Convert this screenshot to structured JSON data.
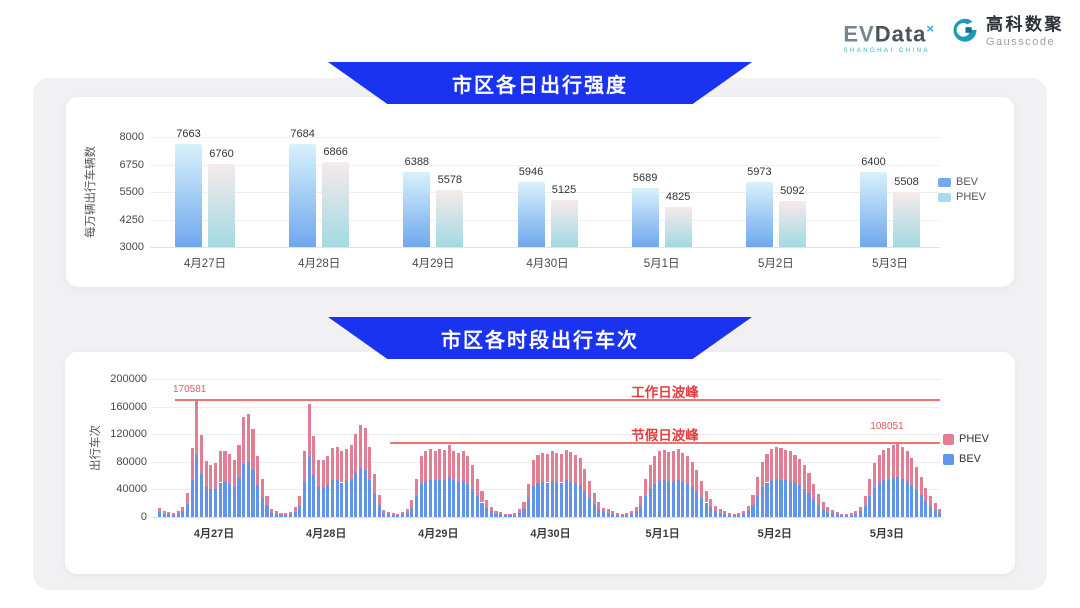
{
  "header": {
    "evdata": {
      "ev": "EV",
      "data": "Data",
      "sup": "×",
      "subtext": "SHANGHAI CHINA"
    },
    "gausscode": {
      "cn": "高科数聚",
      "en": "Gausscode"
    }
  },
  "colors": {
    "banner_blue": "#1a33f0",
    "annotation_red": "#e23d3d",
    "annotation_value_red": "#e25c5c",
    "annotation_line_red": "#ea7575",
    "bev_bar_top": "#d8f2fb",
    "bev_bar_bottom": "#6fa7ee",
    "phev_bar_top": "#f7eaea",
    "phev_bar_bottom": "#a2dae2",
    "legend_bev1": "#71aaef",
    "legend_phev1": "#a6dce6",
    "bev_stack": "#6394ec",
    "phev_stack": "#e27e93"
  },
  "chart_data": [
    {
      "type": "bar",
      "title": "市区各日出行强度",
      "ylabel": "每万辆出行车辆数",
      "categories": [
        "4月27日",
        "4月28日",
        "4月29日",
        "4月30日",
        "5月1日",
        "5月2日",
        "5月3日"
      ],
      "series": [
        {
          "name": "BEV",
          "values": [
            7663,
            7684,
            6388,
            5946,
            5689,
            5973,
            6400
          ]
        },
        {
          "name": "PHEV",
          "values": [
            6760,
            6866,
            5578,
            5125,
            4825,
            5092,
            5508
          ]
        }
      ],
      "ylim": [
        3000,
        8000
      ],
      "yticks": [
        3000,
        4250,
        5500,
        6750,
        8000
      ],
      "grid": true,
      "legend_position": "right"
    },
    {
      "type": "bar",
      "stacked": true,
      "title": "市区各时段出行车次",
      "ylabel": "出行车次",
      "x_unit": "hour-of-day (24 bars per date)",
      "categories": [
        "4月27日",
        "4月28日",
        "4月29日",
        "4月30日",
        "5月1日",
        "5月2日",
        "5月3日"
      ],
      "legend": [
        "PHEV",
        "BEV"
      ],
      "ylim": [
        0,
        200000
      ],
      "yticks": [
        0,
        40000,
        80000,
        120000,
        160000,
        200000
      ],
      "grid": true,
      "legend_position": "right",
      "annotations": {
        "workday_label": "工作日波峰",
        "workday_peak_value": 170581,
        "workday_value_label": "170581",
        "holiday_label": "节假日波峰",
        "holiday_peak_value": 108051,
        "holiday_value_label": "108051"
      },
      "days": [
        {
          "label": "4月27日",
          "bev": [
            7000,
            5000,
            4000,
            3200,
            4300,
            8000,
            19000,
            54000,
            91000,
            62000,
            43000,
            40000,
            41000,
            50000,
            51000,
            48000,
            43000,
            56000,
            77000,
            80000,
            68000,
            47000,
            29000,
            16000
          ],
          "phev": [
            6000,
            4000,
            3000,
            2800,
            3700,
            7000,
            16000,
            46000,
            79581,
            57000,
            38000,
            36000,
            37000,
            45000,
            45000,
            43000,
            39000,
            49000,
            68000,
            70000,
            60000,
            41000,
            26000,
            14000
          ]
        },
        {
          "label": "4月28日",
          "bev": [
            6500,
            4300,
            3200,
            3200,
            3800,
            7500,
            16000,
            51000,
            88000,
            61000,
            43000,
            44000,
            47000,
            53000,
            54000,
            50000,
            52000,
            55000,
            64000,
            71000,
            68000,
            53000,
            33000,
            17000
          ],
          "phev": [
            5500,
            3700,
            2800,
            2800,
            3200,
            6500,
            14000,
            44000,
            76000,
            56000,
            39000,
            39000,
            41000,
            47000,
            48000,
            45000,
            46000,
            49000,
            56000,
            63000,
            61000,
            48000,
            29000,
            15000
          ]
        },
        {
          "label": "4月29日",
          "bev": [
            5500,
            3800,
            3300,
            2700,
            3800,
            6500,
            13500,
            30000,
            48000,
            52000,
            54000,
            53000,
            54000,
            53000,
            58000,
            53000,
            51000,
            52000,
            48000,
            41000,
            30000,
            21000,
            13500,
            8000
          ],
          "phev": [
            4500,
            3200,
            2700,
            2300,
            3200,
            5500,
            11500,
            25000,
            40000,
            43000,
            44000,
            43000,
            45000,
            44000,
            47000,
            43000,
            42000,
            43000,
            40000,
            34000,
            25000,
            17000,
            11500,
            7000
          ]
        },
        {
          "label": "4月30日",
          "bev": [
            5000,
            3800,
            2700,
            2700,
            3300,
            6000,
            12000,
            26000,
            45000,
            49000,
            51000,
            50000,
            52000,
            51000,
            50000,
            53000,
            51000,
            49000,
            46000,
            38000,
            28000,
            19000,
            12000,
            7000
          ],
          "phev": [
            4000,
            3200,
            2300,
            2300,
            2700,
            5000,
            10000,
            22000,
            37000,
            41000,
            42000,
            42000,
            43000,
            42000,
            42000,
            44000,
            43000,
            41000,
            39000,
            32000,
            24000,
            16000,
            10000,
            6000
          ]
        },
        {
          "label": "5月1日",
          "bev": [
            6500,
            4300,
            3300,
            2700,
            3300,
            5000,
            8000,
            16000,
            30000,
            41000,
            48000,
            52000,
            53000,
            51000,
            52000,
            53000,
            51000,
            48000,
            44000,
            37000,
            28000,
            21000,
            14000,
            9000
          ],
          "phev": [
            5500,
            3700,
            2700,
            2300,
            2700,
            4000,
            7000,
            14000,
            25000,
            34000,
            40000,
            43000,
            44000,
            43000,
            44000,
            45000,
            42000,
            40000,
            36000,
            31000,
            24000,
            17000,
            12000,
            7000
          ]
        },
        {
          "label": "5月2日",
          "bev": [
            6000,
            4300,
            3300,
            2700,
            3300,
            5000,
            8500,
            17000,
            31000,
            43000,
            50000,
            54000,
            55000,
            54000,
            53000,
            52000,
            49000,
            46000,
            41000,
            35000,
            26000,
            18000,
            12000,
            7500
          ],
          "phev": [
            5000,
            3700,
            2700,
            2300,
            2700,
            4000,
            7500,
            15000,
            27000,
            37000,
            42000,
            45000,
            47000,
            46000,
            44000,
            43000,
            41000,
            38000,
            35000,
            29000,
            22000,
            16000,
            10000,
            6500
          ]
        },
        {
          "label": "5月3日",
          "bev": [
            5500,
            3800,
            2700,
            2700,
            3300,
            5000,
            8000,
            16000,
            30000,
            42000,
            49000,
            53000,
            54000,
            56000,
            58000,
            55000,
            52000,
            46000,
            39000,
            32000,
            23000,
            16000,
            11000,
            6500
          ],
          "phev": [
            4500,
            3200,
            2300,
            2300,
            2700,
            4000,
            7000,
            14000,
            25000,
            36000,
            41000,
            44000,
            46000,
            48000,
            50051,
            47000,
            43000,
            39000,
            33000,
            26000,
            19000,
            14000,
            9000,
            5500
          ]
        }
      ]
    }
  ]
}
